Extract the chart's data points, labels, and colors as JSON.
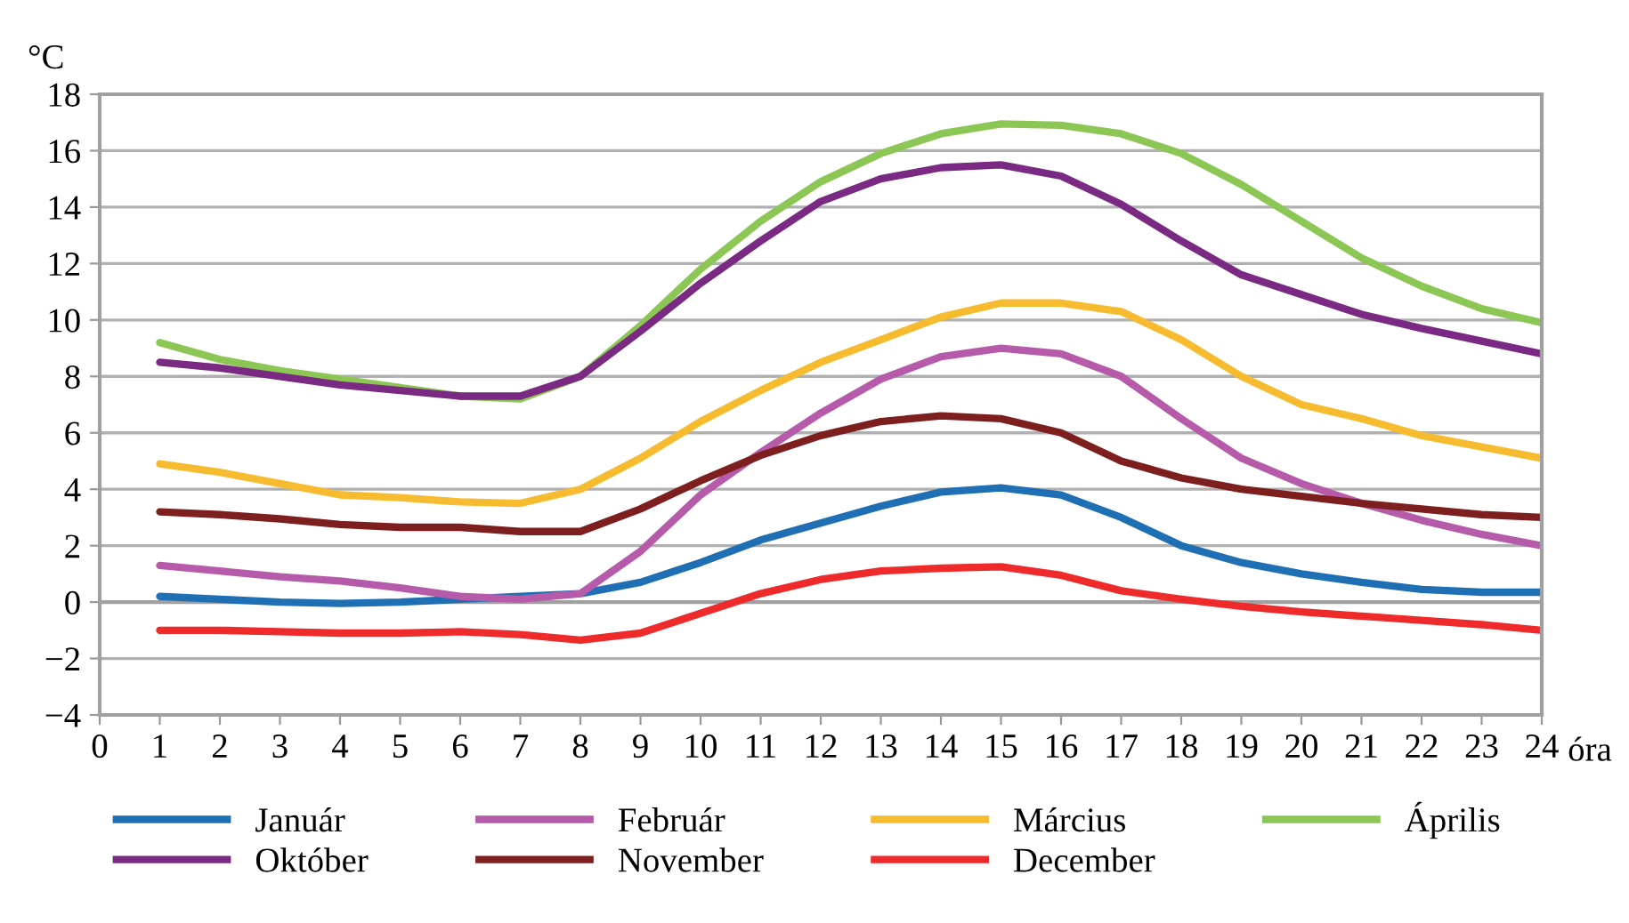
{
  "chart_data": {
    "type": "line",
    "ylabel": "°C",
    "xlabel": "óra",
    "x": [
      1,
      2,
      3,
      4,
      5,
      6,
      7,
      8,
      9,
      10,
      11,
      12,
      13,
      14,
      15,
      16,
      17,
      18,
      19,
      20,
      21,
      22,
      23,
      24
    ],
    "xlim": [
      0,
      24
    ],
    "xticks": [
      0,
      1,
      2,
      3,
      4,
      5,
      6,
      7,
      8,
      9,
      10,
      11,
      12,
      13,
      14,
      15,
      16,
      17,
      18,
      19,
      20,
      21,
      22,
      23,
      24
    ],
    "ylim": [
      -4,
      18
    ],
    "yticks": [
      {
        "value": -4,
        "label": "−4"
      },
      {
        "value": -2,
        "label": "−2"
      },
      0,
      2,
      4,
      6,
      8,
      10,
      12,
      14,
      16,
      18
    ],
    "grid": "y",
    "legend": "bottom",
    "marker": "none",
    "line_style": "solid",
    "series": [
      {
        "name": "Január",
        "color": "#1f6fb5",
        "values": [
          0.2,
          0.1,
          0,
          -0.05,
          0,
          0.1,
          0.2,
          0.3,
          0.7,
          1.4,
          2.2,
          2.8,
          3.4,
          3.9,
          4.05,
          3.8,
          3.0,
          2.0,
          1.4,
          1.0,
          0.7,
          0.45,
          0.35,
          0.35
        ]
      },
      {
        "name": "Február",
        "color": "#b65aaa",
        "values": [
          1.3,
          1.1,
          0.9,
          0.75,
          0.5,
          0.2,
          0.1,
          0.3,
          1.8,
          3.8,
          5.3,
          6.7,
          7.9,
          8.7,
          9.0,
          8.8,
          8.0,
          6.5,
          5.1,
          4.2,
          3.5,
          2.9,
          2.4,
          2.0
        ]
      },
      {
        "name": "Március",
        "color": "#f6bb2e",
        "values": [
          4.9,
          4.6,
          4.2,
          3.8,
          3.7,
          3.55,
          3.5,
          4.0,
          5.1,
          6.4,
          7.5,
          8.5,
          9.3,
          10.1,
          10.6,
          10.6,
          10.3,
          9.3,
          8.0,
          7.0,
          6.5,
          5.9,
          5.5,
          5.1
        ]
      },
      {
        "name": "Április",
        "color": "#8cc756",
        "values": [
          9.2,
          8.6,
          8.2,
          7.9,
          7.6,
          7.3,
          7.2,
          8.0,
          9.8,
          11.8,
          13.5,
          14.9,
          15.9,
          16.6,
          16.95,
          16.9,
          16.6,
          15.9,
          14.8,
          13.5,
          12.2,
          11.2,
          10.4,
          9.9
        ]
      },
      {
        "name": "Október",
        "color": "#7b2a83",
        "values": [
          8.5,
          8.3,
          8.0,
          7.7,
          7.5,
          7.3,
          7.3,
          8.0,
          9.6,
          11.3,
          12.8,
          14.2,
          15.0,
          15.4,
          15.5,
          15.1,
          14.1,
          12.8,
          11.6,
          10.9,
          10.2,
          9.7,
          9.25,
          8.8
        ]
      },
      {
        "name": "November",
        "color": "#7e1f1f",
        "values": [
          3.2,
          3.1,
          2.95,
          2.75,
          2.65,
          2.65,
          2.5,
          2.5,
          3.3,
          4.3,
          5.2,
          5.9,
          6.4,
          6.6,
          6.5,
          6.0,
          5.0,
          4.4,
          4.0,
          3.75,
          3.5,
          3.3,
          3.1,
          3.0
        ]
      },
      {
        "name": "December",
        "color": "#ee2a2a",
        "values": [
          -1.0,
          -1.0,
          -1.05,
          -1.1,
          -1.1,
          -1.05,
          -1.15,
          -1.35,
          -1.1,
          -0.4,
          0.3,
          0.8,
          1.1,
          1.2,
          1.25,
          0.95,
          0.4,
          0.1,
          -0.15,
          -0.35,
          -0.5,
          -0.65,
          -0.8,
          -1.0
        ]
      }
    ]
  }
}
